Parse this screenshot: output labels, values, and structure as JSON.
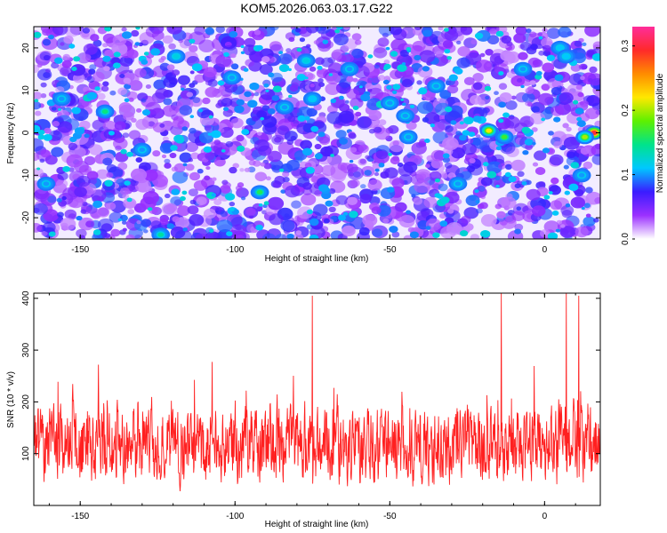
{
  "figure": {
    "title": "KOM5.2026.063.03.17.G22"
  },
  "chart_data": [
    {
      "type": "heatmap",
      "title": "KOM5.2026.063.03.17.G22",
      "xlabel": "Height of straight line (km)",
      "ylabel": "Frequency (Hz)",
      "xlim": [
        -165,
        18
      ],
      "ylim": [
        -25,
        25
      ],
      "x_ticks": [
        -150,
        -100,
        -50,
        0
      ],
      "y_ticks": [
        -20,
        -10,
        0,
        10,
        20
      ],
      "colorbar": {
        "label": "Normalized spectral amplitude",
        "range": [
          0.0,
          0.33
        ],
        "ticks": [
          0.0,
          0.1,
          0.2,
          0.3
        ],
        "colormap": [
          "#ffffff",
          "#9b30ff",
          "#3a1cff",
          "#00c8ff",
          "#00e38b",
          "#5ef000",
          "#ffe800",
          "#ff8c00",
          "#ff2a2a",
          "#ff2d9a"
        ]
      },
      "hotspots": [
        {
          "x": -142,
          "y": 5,
          "v": 0.15
        },
        {
          "x": -119,
          "y": 18,
          "v": 0.12
        },
        {
          "x": -92,
          "y": -14,
          "v": 0.16
        },
        {
          "x": -77,
          "y": 17,
          "v": 0.12
        },
        {
          "x": -75,
          "y": 8,
          "v": 0.11
        },
        {
          "x": -63,
          "y": 15,
          "v": 0.1
        },
        {
          "x": -50,
          "y": 7,
          "v": 0.1
        },
        {
          "x": -45,
          "y": 4,
          "v": 0.1
        },
        {
          "x": -44,
          "y": -1,
          "v": 0.1
        },
        {
          "x": -156,
          "y": 8,
          "v": 0.1
        },
        {
          "x": -18,
          "y": 0.5,
          "v": 0.22
        },
        {
          "x": -13,
          "y": -1,
          "v": 0.17
        },
        {
          "x": -7,
          "y": 15,
          "v": 0.1
        },
        {
          "x": 5,
          "y": 20,
          "v": 0.11
        },
        {
          "x": 7,
          "y": 18,
          "v": 0.11
        },
        {
          "x": 16,
          "y": 0,
          "v": 0.3
        },
        {
          "x": 13,
          "y": -1,
          "v": 0.2
        },
        {
          "x": -130,
          "y": -4,
          "v": 0.1
        },
        {
          "x": -161,
          "y": -12,
          "v": 0.1
        },
        {
          "x": -124,
          "y": -24,
          "v": 0.14
        },
        {
          "x": -35,
          "y": 11,
          "v": 0.1
        },
        {
          "x": -28,
          "y": -12,
          "v": 0.1
        },
        {
          "x": -101,
          "y": 13,
          "v": 0.1
        },
        {
          "x": -84,
          "y": 6,
          "v": 0.1
        },
        {
          "x": 12,
          "y": -10,
          "v": 0.1
        }
      ]
    },
    {
      "type": "line",
      "xlabel": "Height of straight line (km)",
      "ylabel": "SNR (10 * v/v)",
      "xlim": [
        -165,
        18
      ],
      "ylim": [
        0,
        410
      ],
      "x_ticks": [
        -150,
        -100,
        -50,
        0
      ],
      "y_ticks": [
        100,
        200,
        300,
        400
      ],
      "series": [
        {
          "color": "#ff2020",
          "approx_mean": 115,
          "approx_range": [
            5,
            410
          ],
          "peaks": [
            {
              "x": -75,
              "y": 405
            },
            {
              "x": -14,
              "y": 410
            },
            {
              "x": 7,
              "y": 410
            },
            {
              "x": 11,
              "y": 405
            }
          ]
        }
      ]
    }
  ]
}
